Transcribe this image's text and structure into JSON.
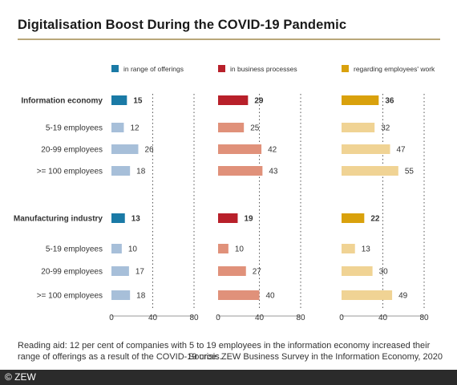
{
  "title": "Digitalisation Boost During the COVID-19 Pandemic",
  "reading_aid": "Reading aid: 12 per cent of companies with 5 to 19 employees in the information economy increased their range of offerings as a result of the COVID-19 crisis.",
  "source": "Source: ZEW Business Survey in the Information Economy, 2020",
  "copyright": "© ZEW",
  "chart_data": {
    "type": "bar",
    "orientation": "horizontal",
    "panels": "three side-by-side panels, one per series",
    "categories": [
      "Information economy",
      "5-19 employees",
      "20-99 employees",
      ">= 100 employees",
      "Manufacturing industry",
      "5-19 employees",
      "20-99 employees",
      ">= 100 employees"
    ],
    "category_bold": [
      true,
      false,
      false,
      false,
      true,
      false,
      false,
      false
    ],
    "series": [
      {
        "name": "in range of offerings",
        "color_total": "#1a7aa6",
        "color_sub": "#a7bfd9",
        "values": [
          15,
          12,
          26,
          18,
          13,
          10,
          17,
          18
        ]
      },
      {
        "name": "in business processes",
        "color_total": "#b8202a",
        "color_sub": "#e0917a",
        "values": [
          29,
          25,
          42,
          43,
          19,
          10,
          27,
          40
        ]
      },
      {
        "name": "regarding employees' work",
        "color_total": "#d9a10c",
        "color_sub": "#f0d394",
        "values": [
          36,
          32,
          47,
          55,
          22,
          13,
          30,
          49
        ]
      }
    ],
    "xticks": [
      0,
      40,
      80
    ],
    "xlim": [
      0,
      80
    ],
    "grid": "dotted vertical lines at 40 and 80",
    "legend": "top, above each panel"
  }
}
